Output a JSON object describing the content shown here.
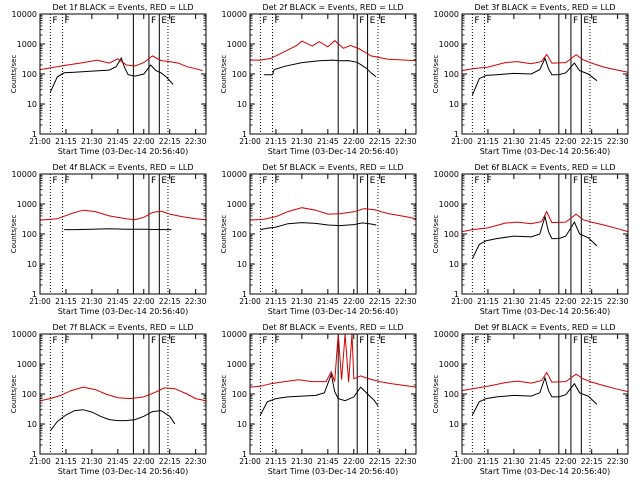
{
  "figure": {
    "xlabel_prefix": "Start Time",
    "start_time": "(03-Dec-14 20:56:40)",
    "ylabel": "Counts/sec",
    "xticks": [
      "21:00",
      "21:15",
      "21:30",
      "21:45",
      "22:00",
      "22:15",
      "22:30"
    ],
    "yticks": [
      "1",
      "10",
      "100",
      "1000",
      "10000"
    ],
    "colors": {
      "events": "#000000",
      "lld": "#d40000",
      "axes": "#000000",
      "dotted": "#000000"
    }
  },
  "chart_data": [
    {
      "type": "line",
      "title": "Det 1f BLACK = Events, RED = LLD",
      "xlim": [
        "21:00",
        "22:36"
      ],
      "ylim": [
        1,
        10000
      ],
      "yscale": "log",
      "series": [
        {
          "name": "Events",
          "x": [
            "21:06",
            "21:10",
            "21:14",
            "21:20",
            "21:30",
            "21:40",
            "21:44",
            "21:47",
            "21:49",
            "21:51",
            "21:55",
            "22:00",
            "22:04",
            "22:07",
            "22:10",
            "22:13",
            "22:17"
          ],
          "values": [
            25,
            80,
            110,
            115,
            125,
            135,
            175,
            340,
            160,
            95,
            85,
            100,
            200,
            130,
            110,
            80,
            45
          ]
        },
        {
          "name": "LLD",
          "x": [
            "21:00",
            "21:06",
            "21:15",
            "21:25",
            "21:33",
            "21:40",
            "21:45",
            "21:50",
            "21:55",
            "22:00",
            "22:05",
            "22:10",
            "22:15",
            "22:20",
            "22:25",
            "22:30",
            "22:34"
          ],
          "values": [
            140,
            160,
            195,
            240,
            290,
            230,
            320,
            200,
            185,
            240,
            400,
            280,
            260,
            230,
            175,
            150,
            130
          ]
        }
      ],
      "markers": {
        "solid": [
          "21:54",
          "22:03",
          "22:09"
        ],
        "dotted": [
          "21:06",
          "21:13",
          "22:14"
        ],
        "flags": [
          "F",
          "F",
          "F",
          "E",
          "E"
        ]
      }
    },
    {
      "type": "line",
      "title": "Det 2f BLACK = Events, RED = LLD",
      "xlim": [
        "21:00",
        "22:36"
      ],
      "ylim": [
        1,
        10000
      ],
      "yscale": "log",
      "series": [
        {
          "name": "Events",
          "x": [
            "21:08",
            "21:13",
            "21:14",
            "21:20",
            "21:30",
            "21:40",
            "21:48",
            "21:52",
            "21:57",
            "22:02",
            "22:07",
            "22:10",
            "22:13"
          ],
          "values": [
            95,
            95,
            140,
            180,
            240,
            275,
            290,
            275,
            280,
            245,
            160,
            110,
            80
          ]
        },
        {
          "name": "LLD",
          "x": [
            "21:00",
            "21:06",
            "21:12",
            "21:20",
            "21:27",
            "21:30",
            "21:36",
            "21:40",
            "21:45",
            "21:49",
            "21:54",
            "21:58",
            "22:03",
            "22:10",
            "22:20",
            "22:30",
            "22:36"
          ],
          "values": [
            290,
            290,
            330,
            560,
            900,
            1250,
            850,
            1200,
            800,
            1300,
            720,
            900,
            700,
            400,
            310,
            290,
            280
          ]
        }
      ],
      "markers": {
        "solid": [
          "21:51",
          "22:02",
          "22:08"
        ],
        "dotted": [
          "21:06",
          "21:13",
          "22:14"
        ],
        "flags": [
          "F",
          "F",
          "F",
          "E",
          "E"
        ]
      }
    },
    {
      "type": "line",
      "title": "Det 3f BLACK = Events, RED = LLD",
      "xlim": [
        "21:00",
        "22:36"
      ],
      "ylim": [
        1,
        10000
      ],
      "yscale": "log",
      "series": [
        {
          "name": "Events",
          "x": [
            "21:06",
            "21:10",
            "21:14",
            "21:20",
            "21:30",
            "21:40",
            "21:45",
            "21:48",
            "21:50",
            "21:52",
            "21:56",
            "22:00",
            "22:05",
            "22:08",
            "22:13",
            "22:18"
          ],
          "values": [
            20,
            70,
            90,
            95,
            105,
            100,
            140,
            330,
            150,
            95,
            95,
            110,
            230,
            130,
            100,
            60
          ]
        },
        {
          "name": "LLD",
          "x": [
            "21:00",
            "21:06",
            "21:15",
            "21:25",
            "21:32",
            "21:40",
            "21:46",
            "21:49",
            "21:52",
            "22:00",
            "22:06",
            "22:10",
            "22:15",
            "22:22",
            "22:30",
            "22:36"
          ],
          "values": [
            130,
            150,
            170,
            240,
            260,
            220,
            260,
            450,
            230,
            240,
            440,
            300,
            230,
            170,
            135,
            115
          ]
        }
      ],
      "markers": {
        "solid": [
          "21:56",
          "22:03",
          "22:09"
        ],
        "dotted": [
          "21:06",
          "21:13",
          "22:14"
        ],
        "flags": [
          "F",
          "F",
          "F",
          "E",
          "E"
        ]
      }
    },
    {
      "type": "line",
      "title": "Det 4f BLACK = Events, RED = LLD",
      "xlim": [
        "21:00",
        "22:36"
      ],
      "ylim": [
        1,
        10000
      ],
      "yscale": "log",
      "series": [
        {
          "name": "Events",
          "x": [
            "21:14",
            "21:20",
            "21:30",
            "21:40",
            "21:50",
            "22:00",
            "22:10",
            "22:16"
          ],
          "values": [
            140,
            140,
            145,
            150,
            145,
            145,
            140,
            140
          ]
        },
        {
          "name": "LLD",
          "x": [
            "21:00",
            "21:10",
            "21:18",
            "21:25",
            "21:32",
            "21:40",
            "21:50",
            "21:55",
            "22:00",
            "22:05",
            "22:10",
            "22:15",
            "22:22",
            "22:30",
            "22:36"
          ],
          "values": [
            290,
            320,
            480,
            620,
            560,
            400,
            320,
            300,
            360,
            520,
            580,
            460,
            380,
            320,
            300
          ]
        }
      ],
      "markers": {
        "solid": [
          "21:54",
          "22:03",
          "22:09"
        ],
        "dotted": [
          "21:06",
          "21:13",
          "22:14"
        ],
        "flags": [
          "F",
          "F",
          "F",
          "E",
          "E"
        ]
      }
    },
    {
      "type": "line",
      "title": "Det 5f BLACK = Events, RED = LLD",
      "xlim": [
        "21:00",
        "22:36"
      ],
      "ylim": [
        1,
        10000
      ],
      "yscale": "log",
      "series": [
        {
          "name": "Events",
          "x": [
            "21:06",
            "21:10",
            "21:15",
            "21:22",
            "21:30",
            "21:38",
            "21:45",
            "21:52",
            "22:00",
            "22:05",
            "22:10",
            "22:13"
          ],
          "values": [
            140,
            155,
            170,
            220,
            240,
            225,
            200,
            190,
            205,
            235,
            215,
            200
          ]
        },
        {
          "name": "LLD",
          "x": [
            "21:00",
            "21:08",
            "21:15",
            "21:22",
            "21:30",
            "21:38",
            "21:45",
            "21:52",
            "22:00",
            "22:06",
            "22:12",
            "22:20",
            "22:30",
            "22:36"
          ],
          "values": [
            290,
            310,
            380,
            560,
            750,
            620,
            460,
            470,
            550,
            700,
            640,
            480,
            380,
            320
          ]
        }
      ],
      "markers": {
        "solid": [
          "21:51",
          "22:02",
          "22:08"
        ],
        "dotted": [
          "21:06",
          "21:13",
          "22:14"
        ],
        "flags": [
          "F",
          "F",
          "F",
          "E",
          "E"
        ]
      }
    },
    {
      "type": "line",
      "title": "Det 6f BLACK = Events, RED = LLD",
      "xlim": [
        "21:00",
        "22:36"
      ],
      "ylim": [
        1,
        10000
      ],
      "yscale": "log",
      "series": [
        {
          "name": "Events",
          "x": [
            "21:06",
            "21:10",
            "21:14",
            "21:20",
            "21:30",
            "21:40",
            "21:45",
            "21:48",
            "21:50",
            "21:52",
            "21:56",
            "22:00",
            "22:05",
            "22:08",
            "22:13",
            "22:18"
          ],
          "values": [
            15,
            45,
            60,
            70,
            85,
            80,
            100,
            380,
            120,
            70,
            70,
            85,
            250,
            100,
            75,
            40
          ]
        },
        {
          "name": "LLD",
          "x": [
            "21:00",
            "21:06",
            "21:15",
            "21:25",
            "21:32",
            "21:40",
            "21:46",
            "21:49",
            "21:52",
            "22:00",
            "22:06",
            "22:10",
            "22:15",
            "22:22",
            "22:30",
            "22:36"
          ],
          "values": [
            120,
            140,
            160,
            230,
            250,
            220,
            260,
            560,
            240,
            250,
            460,
            300,
            250,
            200,
            150,
            120
          ]
        }
      ],
      "markers": {
        "solid": [
          "21:56",
          "22:03",
          "22:09"
        ],
        "dotted": [
          "21:06",
          "21:13",
          "22:14"
        ],
        "flags": [
          "F",
          "F",
          "F",
          "E",
          "E"
        ]
      }
    },
    {
      "type": "line",
      "title": "Det 7f BLACK = Events, RED = LLD",
      "xlim": [
        "21:00",
        "22:36"
      ],
      "ylim": [
        1,
        10000
      ],
      "yscale": "log",
      "series": [
        {
          "name": "Events",
          "x": [
            "21:06",
            "21:10",
            "21:15",
            "21:20",
            "21:25",
            "21:30",
            "21:35",
            "21:40",
            "21:45",
            "21:50",
            "21:55",
            "22:00",
            "22:05",
            "22:10",
            "22:15",
            "22:18"
          ],
          "values": [
            6,
            12,
            20,
            28,
            30,
            25,
            18,
            14,
            13,
            13,
            14,
            18,
            26,
            28,
            18,
            10
          ]
        },
        {
          "name": "LLD",
          "x": [
            "21:00",
            "21:06",
            "21:12",
            "21:18",
            "21:25",
            "21:32",
            "21:38",
            "21:45",
            "21:52",
            "22:00",
            "22:06",
            "22:12",
            "22:18",
            "22:25",
            "22:30",
            "22:36"
          ],
          "values": [
            60,
            70,
            90,
            130,
            170,
            140,
            100,
            75,
            70,
            80,
            110,
            160,
            150,
            100,
            70,
            60
          ]
        }
      ],
      "markers": {
        "solid": [
          "21:54",
          "22:03",
          "22:09"
        ],
        "dotted": [
          "21:06",
          "21:13",
          "22:14"
        ],
        "flags": [
          "F",
          "F",
          "F",
          "E",
          "E"
        ]
      }
    },
    {
      "type": "line",
      "title": "Det 8f BLACK = Events, RED = LLD",
      "xlim": [
        "21:00",
        "22:36"
      ],
      "ylim": [
        1,
        10000
      ],
      "yscale": "log",
      "series": [
        {
          "name": "Events",
          "x": [
            "21:06",
            "21:10",
            "21:15",
            "21:22",
            "21:30",
            "21:38",
            "21:43",
            "21:47",
            "21:49",
            "21:51",
            "21:55",
            "22:00",
            "22:04",
            "22:08",
            "22:12",
            "22:14"
          ],
          "values": [
            20,
            55,
            70,
            80,
            85,
            90,
            110,
            450,
            120,
            70,
            60,
            80,
            170,
            100,
            60,
            40
          ]
        },
        {
          "name": "LLD",
          "x": [
            "21:00",
            "21:06",
            "21:12",
            "21:20",
            "21:28",
            "21:36",
            "21:44",
            "21:47",
            "21:49",
            "21:51",
            "21:53",
            "21:55",
            "21:57",
            "21:59",
            "22:00",
            "22:04",
            "22:08",
            "22:15",
            "22:22",
            "22:30",
            "22:36"
          ],
          "values": [
            170,
            180,
            220,
            260,
            300,
            260,
            260,
            550,
            260,
            10000,
            300,
            10000,
            250,
            10000,
            320,
            400,
            330,
            260,
            220,
            190,
            170
          ]
        }
      ],
      "markers": {
        "solid": [
          "21:51",
          "22:02",
          "22:08"
        ],
        "dotted": [
          "21:06",
          "21:13",
          "22:14"
        ],
        "flags": [
          "F",
          "F",
          "F",
          "E",
          "E"
        ]
      }
    },
    {
      "type": "line",
      "title": "Det 9f BLACK = Events, RED = LLD",
      "xlim": [
        "21:00",
        "22:36"
      ],
      "ylim": [
        1,
        10000
      ],
      "yscale": "log",
      "series": [
        {
          "name": "Events",
          "x": [
            "21:06",
            "21:10",
            "21:14",
            "21:20",
            "21:30",
            "21:40",
            "21:45",
            "21:48",
            "21:50",
            "21:52",
            "21:56",
            "22:00",
            "22:05",
            "22:08",
            "22:13",
            "22:18"
          ],
          "values": [
            20,
            55,
            70,
            80,
            90,
            85,
            110,
            350,
            130,
            80,
            80,
            95,
            220,
            110,
            85,
            45
          ]
        },
        {
          "name": "LLD",
          "x": [
            "21:00",
            "21:06",
            "21:15",
            "21:25",
            "21:32",
            "21:40",
            "21:46",
            "21:49",
            "21:52",
            "22:00",
            "22:06",
            "22:10",
            "22:15",
            "22:22",
            "22:30",
            "22:36"
          ],
          "values": [
            130,
            150,
            180,
            240,
            270,
            230,
            280,
            520,
            250,
            260,
            460,
            320,
            250,
            190,
            145,
            120
          ]
        }
      ],
      "markers": {
        "solid": [
          "21:56",
          "22:03",
          "22:09"
        ],
        "dotted": [
          "21:06",
          "21:13",
          "22:14"
        ],
        "flags": [
          "F",
          "F",
          "F",
          "E",
          "E"
        ]
      }
    }
  ]
}
